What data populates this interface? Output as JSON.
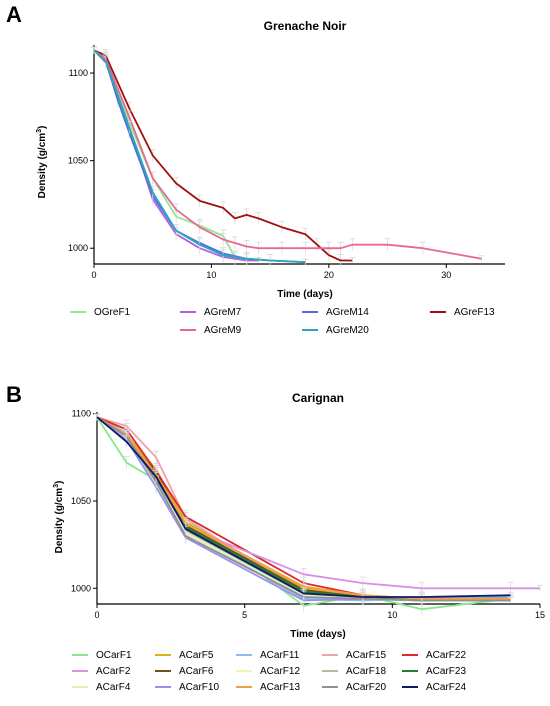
{
  "panels": [
    "A",
    "B"
  ],
  "chart_data": [
    {
      "type": "line",
      "title": "Grenache  Noir",
      "xlabel": "Time (days)",
      "ylabel_main": "Density (g/cm",
      "ylabel_sup": "3",
      "ylabel_end": ")",
      "xlim": [
        0,
        35
      ],
      "ylim": [
        991,
        1116
      ],
      "xticks": [
        0,
        10,
        20,
        30
      ],
      "yticks": [
        1000,
        1050,
        1100
      ],
      "grid": false,
      "legend_position": "bottom",
      "series": [
        {
          "name": "OGreF1",
          "color": "#90e890",
          "x": [
            0,
            1,
            3,
            5,
            7,
            9,
            11,
            12,
            13,
            14
          ],
          "y": [
            1113,
            1109,
            1072,
            1040,
            1018,
            1013,
            1007,
            995,
            994,
            993
          ]
        },
        {
          "name": "AGreM7",
          "color": "#b060e0",
          "x": [
            0,
            1,
            3,
            5,
            7,
            9,
            11,
            12,
            13,
            14
          ],
          "y": [
            1113,
            1106,
            1069,
            1028,
            1008,
            1000,
            995,
            994,
            993,
            993
          ]
        },
        {
          "name": "AGreM14",
          "color": "#5070e0",
          "x": [
            0,
            1,
            2,
            3,
            5,
            7,
            9,
            11,
            13,
            15,
            18
          ],
          "y": [
            1113,
            1107,
            1085,
            1066,
            1030,
            1010,
            1003,
            997,
            994,
            993,
            992
          ]
        },
        {
          "name": "AGreF13",
          "color": "#a01010",
          "x": [
            0,
            1,
            3,
            5,
            7,
            9,
            11,
            12,
            13,
            14,
            16,
            18,
            19,
            20,
            21,
            22
          ],
          "y": [
            1113,
            1110,
            1080,
            1053,
            1037,
            1027,
            1023,
            1017,
            1019,
            1017,
            1012,
            1008,
            1002,
            996,
            993,
            993
          ]
        },
        {
          "name": "AGreM9",
          "color": "#e86890",
          "x": [
            0,
            1,
            3,
            5,
            7,
            9,
            11,
            12,
            13,
            14,
            16,
            18,
            20,
            21,
            22,
            25,
            28,
            33
          ],
          "y": [
            1113,
            1108,
            1075,
            1040,
            1022,
            1012,
            1005,
            1003,
            1001,
            1000,
            1000,
            1000,
            1000,
            1000,
            1002,
            1002,
            1000,
            994
          ]
        },
        {
          "name": "AGreM20",
          "color": "#2aa8b8",
          "x": [
            0,
            1,
            3,
            5,
            7,
            9,
            11,
            13,
            15,
            18
          ],
          "y": [
            1113,
            1107,
            1069,
            1032,
            1010,
            1002,
            996,
            994,
            993,
            992
          ]
        }
      ]
    },
    {
      "type": "line",
      "title": "Carignan",
      "xlabel": "Time (days)",
      "ylabel_main": "Density (g/cm",
      "ylabel_sup": "3",
      "ylabel_end": ")",
      "xlim": [
        0,
        15
      ],
      "ylim": [
        991,
        1101
      ],
      "xticks": [
        0,
        5,
        10,
        15
      ],
      "yticks": [
        1000,
        1050,
        1100
      ],
      "grid": false,
      "legend_position": "bottom",
      "series": [
        {
          "name": "OCarF1",
          "color": "#88e888",
          "x": [
            0,
            1,
            2,
            3,
            7,
            9,
            11,
            14
          ],
          "y": [
            1098,
            1072,
            1062,
            1040,
            990,
            996,
            988,
            994
          ]
        },
        {
          "name": "ACarF5",
          "color": "#d8b020",
          "x": [
            0,
            1,
            2,
            3,
            7,
            9,
            11,
            14
          ],
          "y": [
            1098,
            1088,
            1068,
            1038,
            1000,
            995,
            993,
            993
          ]
        },
        {
          "name": "ACarF11",
          "color": "#90b8e8",
          "x": [
            0,
            1,
            2,
            3,
            7,
            9,
            11,
            14
          ],
          "y": [
            1098,
            1089,
            1062,
            1032,
            994,
            993,
            994,
            995
          ]
        },
        {
          "name": "ACarF15",
          "color": "#f0a0a8",
          "x": [
            0,
            1,
            2,
            3,
            7,
            9,
            11,
            14
          ],
          "y": [
            1098,
            1093,
            1075,
            1040,
            997,
            994,
            994,
            994
          ]
        },
        {
          "name": "ACarF22",
          "color": "#e02828",
          "x": [
            0,
            1,
            2,
            3,
            7,
            9,
            11,
            14
          ],
          "y": [
            1098,
            1091,
            1067,
            1041,
            1003,
            996,
            994,
            994
          ]
        },
        {
          "name": "ACarF2",
          "color": "#d890e8",
          "x": [
            0,
            1,
            2,
            3,
            7,
            9,
            11,
            14,
            15
          ],
          "y": [
            1098,
            1087,
            1064,
            1035,
            1008,
            1003,
            1000,
            1000,
            1000
          ]
        },
        {
          "name": "ACarF6",
          "color": "#705020",
          "x": [
            0,
            1,
            2,
            3,
            7,
            9,
            11,
            14
          ],
          "y": [
            1098,
            1087,
            1066,
            1036,
            999,
            995,
            993,
            993
          ]
        },
        {
          "name": "ACarF12",
          "color": "#f0f0b8",
          "x": [
            0,
            1,
            2,
            3,
            7,
            9,
            11,
            14
          ],
          "y": [
            1098,
            1086,
            1060,
            1031,
            997,
            994,
            993,
            993
          ]
        },
        {
          "name": "ACarF18",
          "color": "#b0c098",
          "x": [
            0,
            1,
            2,
            3,
            7,
            9,
            11,
            14
          ],
          "y": [
            1098,
            1088,
            1063,
            1033,
            996,
            994,
            993,
            993
          ]
        },
        {
          "name": "ACarF23",
          "color": "#208030",
          "x": [
            0,
            1,
            2,
            3,
            7,
            9,
            11,
            14
          ],
          "y": [
            1098,
            1086,
            1063,
            1035,
            998,
            995,
            994,
            994
          ]
        },
        {
          "name": "ACarF4",
          "color": "#e0f0c0",
          "x": [
            0,
            1,
            2,
            3,
            7,
            9,
            11,
            14
          ],
          "y": [
            1098,
            1086,
            1061,
            1032,
            996,
            994,
            993,
            993
          ]
        },
        {
          "name": "ACarF10",
          "color": "#9890f0",
          "x": [
            0,
            1,
            2,
            3,
            7,
            9,
            11,
            14
          ],
          "y": [
            1098,
            1085,
            1058,
            1029,
            993,
            994,
            993,
            993
          ]
        },
        {
          "name": "ACarF13",
          "color": "#f0a040",
          "x": [
            0,
            1,
            2,
            3,
            7,
            9,
            11,
            14
          ],
          "y": [
            1098,
            1088,
            1065,
            1037,
            1001,
            996,
            994,
            994
          ]
        },
        {
          "name": "ACarF20",
          "color": "#909090",
          "x": [
            0,
            1,
            2,
            3,
            7,
            9,
            11,
            14
          ],
          "y": [
            1098,
            1087,
            1061,
            1030,
            995,
            994,
            993,
            993
          ]
        },
        {
          "name": "ACarF24",
          "color": "#101870",
          "x": [
            0,
            1,
            2,
            3,
            7,
            9,
            11,
            14
          ],
          "y": [
            1098,
            1084,
            1064,
            1034,
            997,
            995,
            995,
            996
          ]
        }
      ]
    }
  ],
  "legends": [
    {
      "columns": [
        [
          "OGreF1"
        ],
        [
          "AGreM7",
          "AGreM9"
        ],
        [
          "AGreM14",
          "AGreM20"
        ],
        [
          "AGreF13"
        ]
      ]
    },
    {
      "columns": [
        [
          "OCarF1",
          "ACarF2",
          "ACarF4"
        ],
        [
          "ACarF5",
          "ACarF6",
          "ACarF10"
        ],
        [
          "ACarF11",
          "ACarF12",
          "ACarF13"
        ],
        [
          "ACarF15",
          "ACarF18",
          "ACarF20"
        ],
        [
          "ACarF22",
          "ACarF23",
          "ACarF24"
        ]
      ]
    }
  ]
}
